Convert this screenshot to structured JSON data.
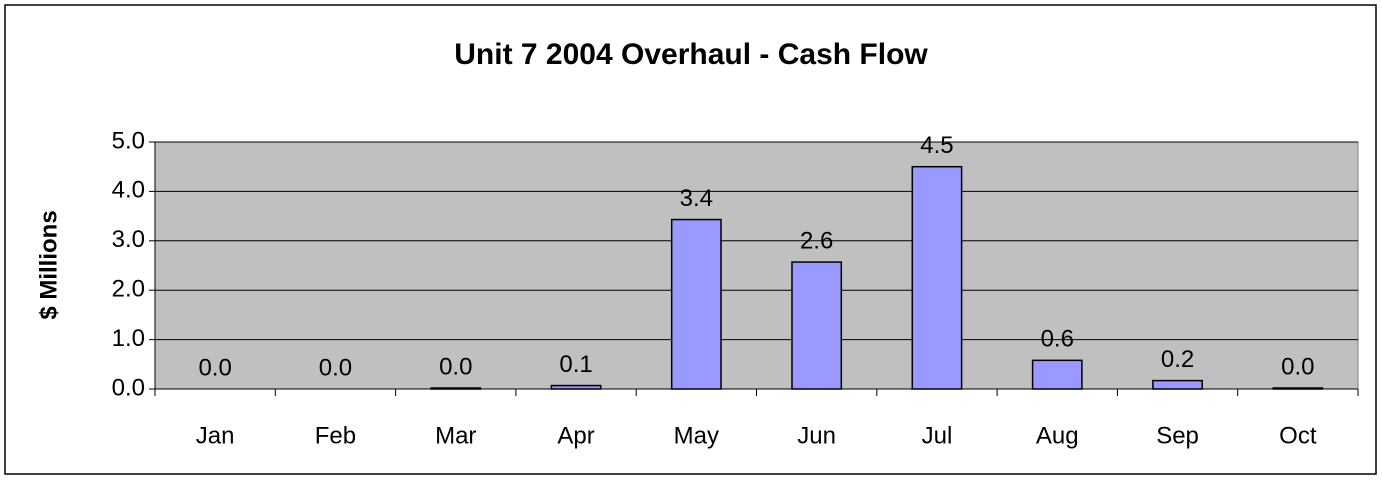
{
  "chart_data": {
    "type": "bar",
    "title": "Unit 7 2004 Overhaul - Cash Flow",
    "y_label": "$ Millions",
    "categories": [
      "Jan",
      "Feb",
      "Mar",
      "Apr",
      "May",
      "Jun",
      "Jul",
      "Aug",
      "Sep",
      "Oct"
    ],
    "values": [
      0,
      0,
      0.02,
      0.07,
      3.43,
      2.57,
      4.5,
      0.58,
      0.17,
      0.02
    ],
    "value_labels": [
      "0.0",
      "0.0",
      "0.0",
      "0.1",
      "3.4",
      "2.6",
      "4.5",
      "0.6",
      "0.2",
      "0.0"
    ],
    "color": "#9999ff",
    "plot_background": "#c0c0c0",
    "ylim": [
      0,
      5
    ],
    "yticks": [
      {
        "value": 0,
        "label": "0.0"
      },
      {
        "value": 1,
        "label": "1.0"
      },
      {
        "value": 2,
        "label": "2.0"
      },
      {
        "value": 3,
        "label": "3.0"
      },
      {
        "value": 4,
        "label": "4.0"
      },
      {
        "value": 5,
        "label": "5.0"
      }
    ],
    "grid": true
  }
}
